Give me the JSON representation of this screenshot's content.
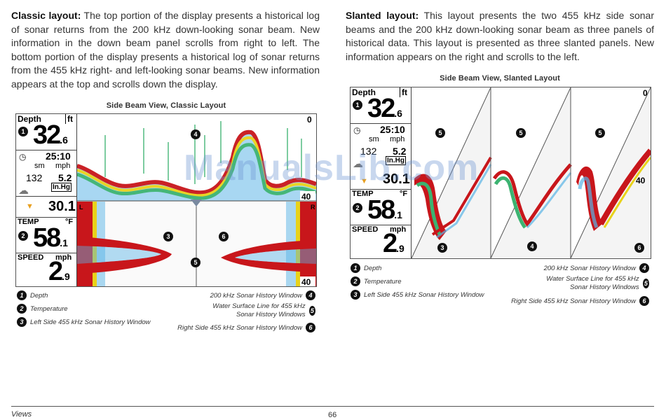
{
  "left_section": {
    "heading": "Classic layout:",
    "body": "The top portion of the display presents a historical log of sonar returns from the 200 kHz down-looking sonar beam. New information in the down beam panel scrolls from right to left. The bottom portion of the display presents a historical log of sonar returns from the 455 kHz right- and left-looking sonar beams. New information appears at the top and scrolls down the display.",
    "figure_title": "Side Beam View, Classic Layout",
    "screen": {
      "depth_label": "Depth",
      "depth_unit": "ft",
      "depth_value": "32",
      "depth_decimal": ".6",
      "time": "25:10",
      "dist_unit": "sm",
      "speed_unit_top": "mph",
      "distance": "132",
      "speed_small": "5.2",
      "pressure_unit": "In.Hg",
      "pressure_value": "30.1",
      "temp_label": "TEMP",
      "temp_unit": "°F",
      "temp_value": "58",
      "temp_decimal": ".1",
      "speed_label": "SPEED",
      "speed_unit": "mph",
      "speed_value": "2",
      "speed_decimal": ".9",
      "scale_top": "0",
      "scale_mid": "40",
      "scale_bottom": "40",
      "left_marker": "L",
      "right_marker": "R"
    },
    "legend_left": [
      {
        "num": "1",
        "text": "Depth"
      },
      {
        "num": "2",
        "text": "Temperature"
      },
      {
        "num": "3",
        "text": "Left Side 455 kHz Sonar History Window"
      }
    ],
    "legend_right": [
      {
        "num": "4",
        "text": "200 kHz Sonar History Window"
      },
      {
        "num": "5",
        "text": "Water Surface Line for 455 kHz Sonar History Windows"
      },
      {
        "num": "6",
        "text": "Right Side 455 kHz Sonar History Window"
      }
    ]
  },
  "right_section": {
    "heading": "Slanted layout:",
    "body": "This layout presents the two 455 kHz side sonar beams and the 200 kHz down-looking sonar beam as three panels of historical data. This layout is presented as three slanted panels. New information appears on the right and scrolls to the left.",
    "figure_title": "Side Beam View, Slanted Layout",
    "screen": {
      "depth_label": "Depth",
      "depth_unit": "ft",
      "depth_value": "32",
      "depth_decimal": ".6",
      "time": "25:10",
      "dist_unit": "sm",
      "speed_unit_top": "mph",
      "distance": "132",
      "speed_small": "5.2",
      "pressure_unit": "In.Hg",
      "pressure_value": "30.1",
      "temp_label": "TEMP",
      "temp_unit": "°F",
      "temp_value": "58",
      "temp_decimal": ".1",
      "speed_label": "SPEED",
      "speed_unit": "mph",
      "speed_value": "2",
      "speed_decimal": ".9",
      "scale_top": "0",
      "scale_mid": "40"
    },
    "legend_left": [
      {
        "num": "1",
        "text": "Depth"
      },
      {
        "num": "2",
        "text": "Temperature"
      },
      {
        "num": "3",
        "text": "Left Side 455 kHz Sonar History Window"
      }
    ],
    "legend_right": [
      {
        "num": "4",
        "text": "200 kHz Sonar History Window"
      },
      {
        "num": "5",
        "text": "Water Surface Line for 455 kHz Sonar History Windows"
      },
      {
        "num": "6",
        "text": "Right Side 455 kHz Sonar History Window"
      }
    ]
  },
  "watermark": "ManualsLib.com",
  "footer": {
    "section": "Views",
    "page": "66"
  },
  "colors": {
    "sonar_red": "#c8161b",
    "sonar_yellow": "#e8d21a",
    "sonar_green": "#3cb371",
    "sonar_blue": "#58b3e6",
    "badge": "#111111"
  }
}
